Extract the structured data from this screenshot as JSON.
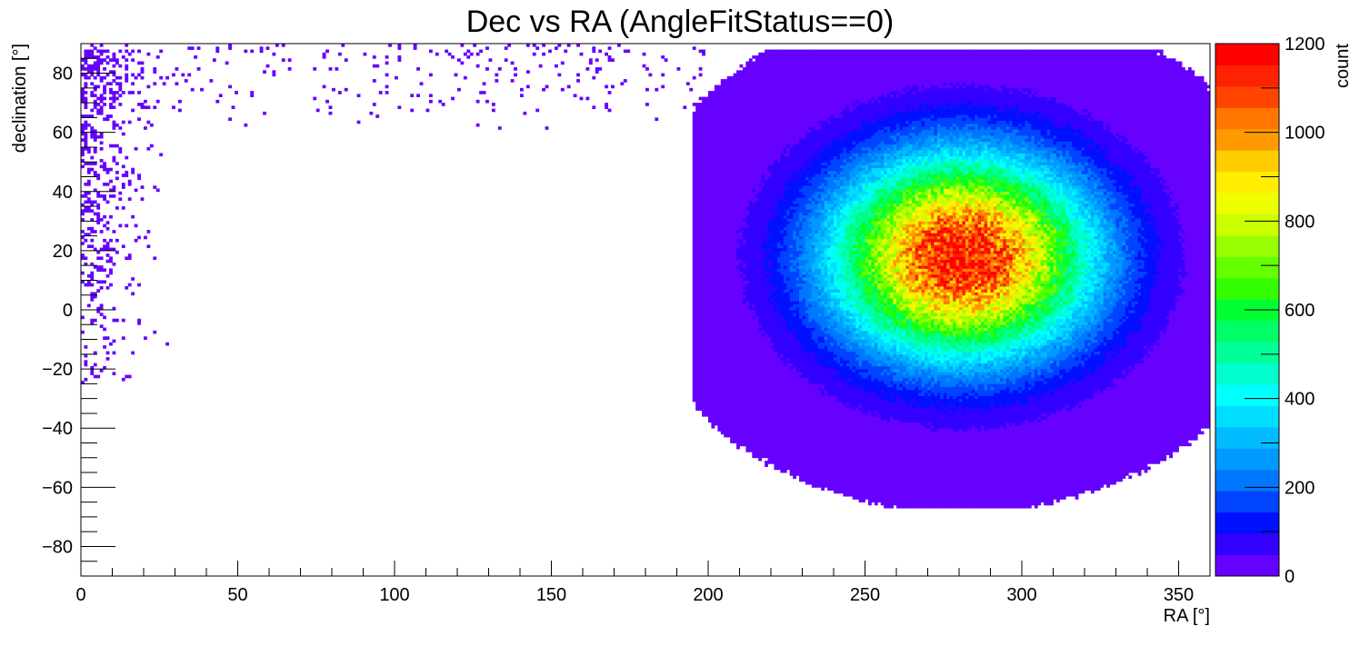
{
  "chart_data": {
    "type": "heatmap",
    "title": "Dec vs RA (AngleFitStatus==0)",
    "xlabel": "RA [°]",
    "ylabel": "declination [°]",
    "zlabel": "count",
    "xlim": [
      0,
      360
    ],
    "ylim": [
      -90,
      90
    ],
    "zlim": [
      0,
      1200
    ],
    "x_ticks": [
      0,
      50,
      100,
      150,
      200,
      250,
      300,
      350
    ],
    "y_ticks": [
      -80,
      -60,
      -40,
      -20,
      0,
      20,
      40,
      60,
      80
    ],
    "z_ticks": [
      0,
      200,
      400,
      600,
      800,
      1000,
      1200
    ],
    "bin_width_deg": 1,
    "grid": false,
    "colorbar_position": "right",
    "colormap": [
      "#6600ff",
      "#3300ff",
      "#0011ff",
      "#0044ff",
      "#0077ff",
      "#0099ff",
      "#00bbff",
      "#00ddff",
      "#00ffff",
      "#00ffcc",
      "#00ff99",
      "#00ff66",
      "#00ff33",
      "#33ff00",
      "#66ff00",
      "#99ff00",
      "#ccff00",
      "#eeff00",
      "#ffee00",
      "#ffcc00",
      "#ff9900",
      "#ff7700",
      "#ff4400",
      "#ff2200",
      "#ff0000"
    ],
    "main_cluster": {
      "center_ra": 281,
      "center_dec": 18,
      "peak_count": 1180,
      "rms_ra": 28,
      "rms_dec": 23,
      "min_ra": 195,
      "max_ra": 360,
      "min_dec": -67,
      "max_dec": 88
    },
    "wrap_cluster": {
      "min_ra": 0,
      "max_ra": 30,
      "min_dec": -25,
      "max_dec": 88,
      "typical_count": 1
    },
    "sparse_band": {
      "ra_range": [
        0,
        200
      ],
      "min_dec": 60,
      "max_dec": 90,
      "typical_count": 1
    }
  }
}
